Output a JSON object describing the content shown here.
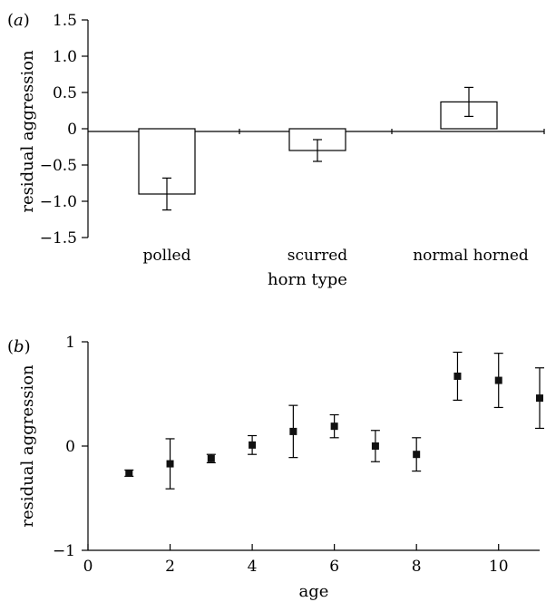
{
  "chart_data": [
    {
      "panel_label": "(a)",
      "type": "bar",
      "ylabel": "residual aggression",
      "xlabel": "horn type",
      "categories": [
        "polled",
        "scurred",
        "normal horned"
      ],
      "values": [
        -0.9,
        -0.3,
        0.37
      ],
      "errors": [
        0.22,
        0.15,
        0.2
      ],
      "ylim": [
        -1.5,
        1.5
      ],
      "yticks": [
        "1.5",
        "1.0",
        "0.5",
        "0",
        "−0.5",
        "−1.0",
        "−1.5"
      ],
      "ytick_values": [
        1.5,
        1.0,
        0.5,
        0,
        -0.5,
        -1.0,
        -1.5
      ],
      "grid": false
    },
    {
      "panel_label": "(b)",
      "type": "scatter",
      "ylabel": "residual aggression",
      "xlabel": "age",
      "x": [
        1,
        2,
        3,
        4,
        5,
        6,
        7,
        8,
        9,
        10,
        11
      ],
      "y": [
        -0.26,
        -0.17,
        -0.12,
        0.01,
        0.14,
        0.19,
        0.0,
        -0.08,
        0.67,
        0.63,
        0.46
      ],
      "errors": [
        0.03,
        0.24,
        0.04,
        0.09,
        0.25,
        0.11,
        0.15,
        0.16,
        0.23,
        0.26,
        0.29
      ],
      "xlim": [
        0,
        11
      ],
      "ylim": [
        -1,
        1
      ],
      "xticks": [
        "0",
        "2",
        "4",
        "6",
        "8",
        "10"
      ],
      "xtick_values": [
        0,
        2,
        4,
        6,
        8,
        10
      ],
      "yticks": [
        "1",
        "0",
        "−1"
      ],
      "ytick_values": [
        1,
        0,
        -1
      ],
      "grid": false
    }
  ]
}
